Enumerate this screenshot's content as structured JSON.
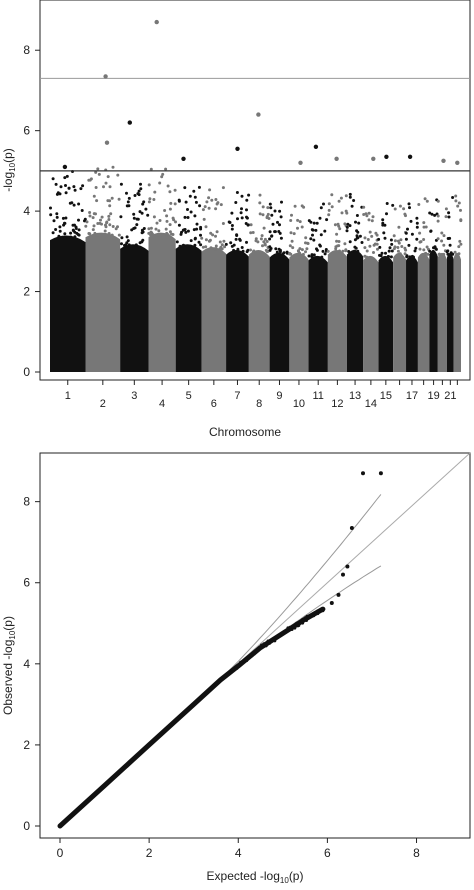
{
  "chart_data": [
    {
      "type": "scatter",
      "subtype": "manhattan",
      "xlabel": "Chromosome",
      "ylabel_main": "-log",
      "ylabel_sub": "10",
      "ylabel_tail": "(p)",
      "ylim": [
        0,
        9
      ],
      "yticks": [
        "0",
        "2",
        "4",
        "6",
        "8"
      ],
      "chromosome_labels": [
        "1",
        "2",
        "3",
        "4",
        "5",
        "6",
        "7",
        "8",
        "9",
        "10",
        "11",
        "12",
        "13",
        "14",
        "15",
        "17",
        "19",
        "21"
      ],
      "chromosomes": 22,
      "colors": {
        "odd": "#111111",
        "even": "#777777",
        "threshold": "#999999",
        "suggestive": "#333333"
      },
      "genome_wide_threshold": 7.3,
      "suggestive_threshold": 5.0,
      "chromosome_peaks": [
        4.9,
        5.0,
        4.6,
        5.0,
        4.6,
        4.5,
        4.4,
        4.4,
        4.3,
        4.3,
        4.2,
        4.4,
        4.4,
        4.2,
        4.2,
        4.3,
        4.2,
        4.3,
        4.4,
        4.3,
        4.3,
        4.3
      ],
      "top_hits": [
        {
          "chr": 4,
          "y": 8.7
        },
        {
          "chr": 2,
          "y": 7.35
        },
        {
          "chr": 8,
          "y": 6.4
        },
        {
          "chr": 3,
          "y": 6.2
        },
        {
          "chr": 2,
          "y": 5.7
        },
        {
          "chr": 7,
          "y": 5.55
        },
        {
          "chr": 11,
          "y": 5.6
        },
        {
          "chr": 14,
          "y": 5.3
        },
        {
          "chr": 15,
          "y": 5.35
        },
        {
          "chr": 1,
          "y": 5.1
        },
        {
          "chr": 5,
          "y": 5.3
        },
        {
          "chr": 10,
          "y": 5.2
        },
        {
          "chr": 12,
          "y": 5.3
        },
        {
          "chr": 17,
          "y": 5.35
        },
        {
          "chr": 20,
          "y": 5.25
        },
        {
          "chr": 22,
          "y": 5.2
        }
      ]
    },
    {
      "type": "scatter",
      "subtype": "qq",
      "xlabel_main": "Expected  -log",
      "xlabel_sub": "10",
      "xlabel_tail": "(p)",
      "ylabel_main": "Observed  -log",
      "ylabel_sub": "10",
      "ylabel_tail": "(p)",
      "xlim": [
        0,
        9.2
      ],
      "ylim": [
        0,
        9.2
      ],
      "xticks": [
        "0",
        "2",
        "4",
        "6",
        "8"
      ],
      "yticks": [
        "0",
        "2",
        "4",
        "6",
        "8"
      ],
      "diagonal_color": "#aaaaaa",
      "band_color": "#999999",
      "outliers": [
        {
          "x": 6.55,
          "y": 7.35
        },
        {
          "x": 6.8,
          "y": 8.7
        },
        {
          "x": 7.2,
          "y": 8.7
        },
        {
          "x": 6.35,
          "y": 6.2
        },
        {
          "x": 6.45,
          "y": 6.4
        },
        {
          "x": 6.25,
          "y": 5.7
        },
        {
          "x": 6.1,
          "y": 5.5
        }
      ],
      "main_curve": [
        {
          "x": 0.0,
          "y": 0.0
        },
        {
          "x": 1.0,
          "y": 1.0
        },
        {
          "x": 2.0,
          "y": 2.0
        },
        {
          "x": 3.0,
          "y": 3.0
        },
        {
          "x": 3.6,
          "y": 3.6
        },
        {
          "x": 4.0,
          "y": 3.95
        },
        {
          "x": 4.5,
          "y": 4.4
        },
        {
          "x": 5.0,
          "y": 4.75
        },
        {
          "x": 5.5,
          "y": 5.1
        },
        {
          "x": 5.9,
          "y": 5.35
        }
      ]
    }
  ]
}
